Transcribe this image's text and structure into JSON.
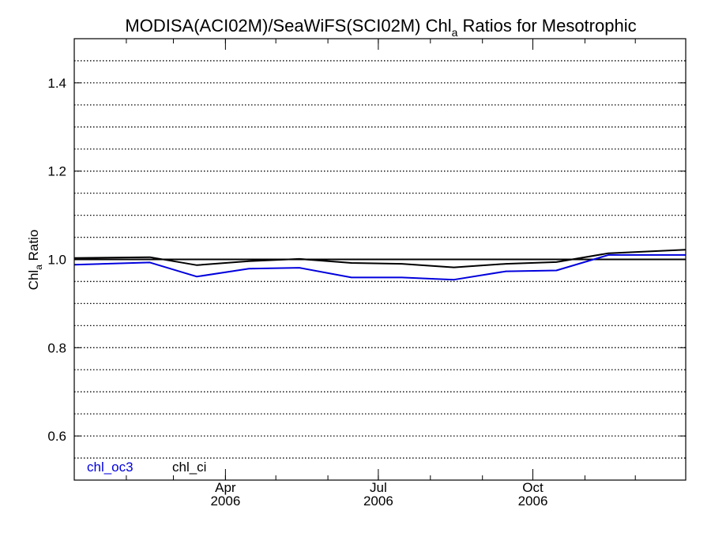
{
  "chart_data": {
    "type": "line",
    "title_main": "MODISA(ACI02M)/SeaWiFS(SCI02M)  Chl",
    "title_sub": "a",
    "title_rest": " Ratios for Mesotrophic",
    "ylabel_main": "Chl",
    "ylabel_sub": "a",
    "ylabel_rest": " Ratio",
    "ylim": [
      0.5,
      1.5
    ],
    "yticks": [
      {
        "value": 0.6,
        "label": "0.6"
      },
      {
        "value": 0.8,
        "label": "0.8"
      },
      {
        "value": 1.0,
        "label": "1.0"
      },
      {
        "value": 1.2,
        "label": "1.2"
      },
      {
        "value": 1.4,
        "label": "1.4"
      }
    ],
    "ygrid_step": 0.05,
    "xlim": [
      "2006-01-01",
      "2006-12-31"
    ],
    "xticks": [
      {
        "date": "2006-04-01",
        "month": "Apr",
        "year": "2006"
      },
      {
        "date": "2006-07-01",
        "month": "Jul",
        "year": "2006"
      },
      {
        "date": "2006-10-01",
        "month": "Oct",
        "year": "2006"
      }
    ],
    "reference_line": 1.0,
    "series": [
      {
        "name": "chl_oc3",
        "color": "#0000dd",
        "points": [
          {
            "x": "2006-01-01",
            "y": 0.988
          },
          {
            "x": "2006-02-15",
            "y": 0.993
          },
          {
            "x": "2006-03-15",
            "y": 0.961
          },
          {
            "x": "2006-04-15",
            "y": 0.979
          },
          {
            "x": "2006-05-15",
            "y": 0.981
          },
          {
            "x": "2006-06-15",
            "y": 0.959
          },
          {
            "x": "2006-07-15",
            "y": 0.959
          },
          {
            "x": "2006-08-15",
            "y": 0.954
          },
          {
            "x": "2006-09-15",
            "y": 0.973
          },
          {
            "x": "2006-10-15",
            "y": 0.975
          },
          {
            "x": "2006-11-15",
            "y": 1.01
          },
          {
            "x": "2006-12-31",
            "y": 1.01
          }
        ]
      },
      {
        "name": "chl_ci",
        "color": "#000000",
        "points": [
          {
            "x": "2006-01-01",
            "y": 1.003
          },
          {
            "x": "2006-02-15",
            "y": 1.005
          },
          {
            "x": "2006-03-15",
            "y": 0.987
          },
          {
            "x": "2006-04-15",
            "y": 0.996
          },
          {
            "x": "2006-05-15",
            "y": 1.001
          },
          {
            "x": "2006-06-15",
            "y": 0.992
          },
          {
            "x": "2006-07-15",
            "y": 0.99
          },
          {
            "x": "2006-08-15",
            "y": 0.982
          },
          {
            "x": "2006-09-15",
            "y": 0.99
          },
          {
            "x": "2006-10-15",
            "y": 0.994
          },
          {
            "x": "2006-11-15",
            "y": 1.014
          },
          {
            "x": "2006-12-31",
            "y": 1.022
          }
        ]
      }
    ],
    "legend": [
      {
        "label": "chl_oc3",
        "color": "#0000dd"
      },
      {
        "label": "chl_ci",
        "color": "#000000"
      }
    ],
    "legend_position": "bottom-left",
    "grid": true
  }
}
